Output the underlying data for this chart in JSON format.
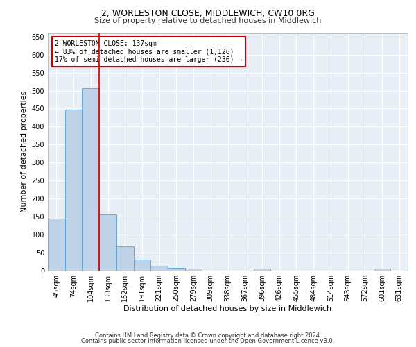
{
  "title": "2, WORLESTON CLOSE, MIDDLEWICH, CW10 0RG",
  "subtitle": "Size of property relative to detached houses in Middlewich",
  "xlabel": "Distribution of detached houses by size in Middlewich",
  "ylabel": "Number of detached properties",
  "categories": [
    "45sqm",
    "74sqm",
    "104sqm",
    "133sqm",
    "162sqm",
    "191sqm",
    "221sqm",
    "250sqm",
    "279sqm",
    "309sqm",
    "338sqm",
    "367sqm",
    "396sqm",
    "426sqm",
    "455sqm",
    "484sqm",
    "514sqm",
    "543sqm",
    "572sqm",
    "601sqm",
    "631sqm"
  ],
  "values": [
    145,
    448,
    507,
    157,
    67,
    30,
    13,
    8,
    5,
    0,
    0,
    0,
    5,
    0,
    0,
    0,
    0,
    0,
    0,
    5,
    0
  ],
  "bar_color": "#bed3e8",
  "bar_edge_color": "#5a9fd4",
  "vline_color": "#cc0000",
  "vline_x_idx": 3,
  "annotation_text": "2 WORLESTON CLOSE: 137sqm\n← 83% of detached houses are smaller (1,126)\n17% of semi-detached houses are larger (236) →",
  "annotation_box_color": "#cc0000",
  "ylim": [
    0,
    660
  ],
  "yticks": [
    0,
    50,
    100,
    150,
    200,
    250,
    300,
    350,
    400,
    450,
    500,
    550,
    600,
    650
  ],
  "background_color": "#e8eef5",
  "footer_line1": "Contains HM Land Registry data © Crown copyright and database right 2024.",
  "footer_line2": "Contains public sector information licensed under the Open Government Licence v3.0.",
  "title_fontsize": 9,
  "subtitle_fontsize": 8,
  "ylabel_fontsize": 8,
  "xlabel_fontsize": 8,
  "tick_fontsize": 7,
  "annotation_fontsize": 7,
  "footer_fontsize": 6
}
